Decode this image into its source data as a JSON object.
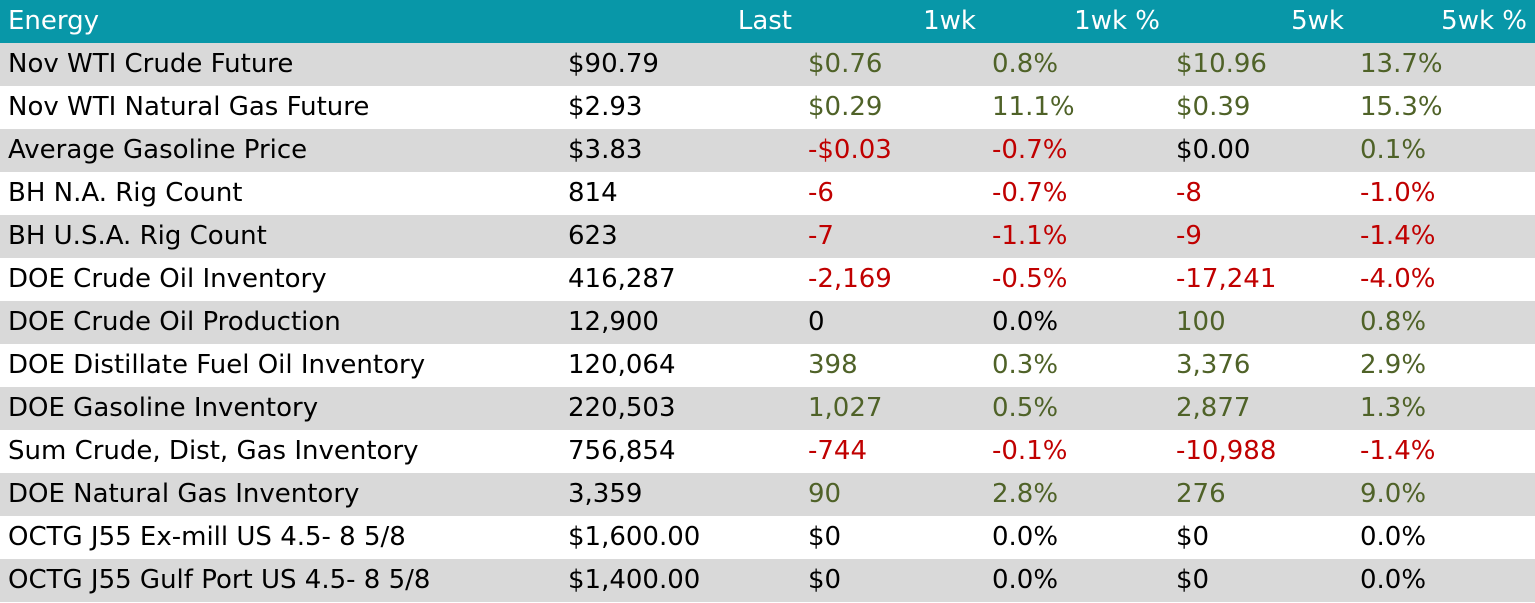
{
  "table": {
    "headers": [
      "Energy",
      "Last",
      "1wk",
      "1wk %",
      "5wk",
      "5wk %"
    ],
    "rows": [
      {
        "name": "Nov WTI Crude Future",
        "last": "$90.79",
        "wk1": "$0.76",
        "wk1_pct": "0.8%",
        "wk5": "$10.96",
        "wk5_pct": "13.7%"
      },
      {
        "name": "Nov WTI Natural Gas Future",
        "last": "$2.93",
        "wk1": "$0.29",
        "wk1_pct": "11.1%",
        "wk5": "$0.39",
        "wk5_pct": "15.3%"
      },
      {
        "name": "Average Gasoline Price",
        "last": "$3.83",
        "wk1": "-$0.03",
        "wk1_pct": "-0.7%",
        "wk5": "$0.00",
        "wk5_pct": "0.1%"
      },
      {
        "name": "BH N.A. Rig Count",
        "last": "814",
        "wk1": "-6",
        "wk1_pct": "-0.7%",
        "wk5": "-8",
        "wk5_pct": "-1.0%"
      },
      {
        "name": "BH U.S.A. Rig Count",
        "last": "623",
        "wk1": "-7",
        "wk1_pct": "-1.1%",
        "wk5": "-9",
        "wk5_pct": "-1.4%"
      },
      {
        "name": "DOE Crude Oil Inventory",
        "last": "416,287",
        "wk1": "-2,169",
        "wk1_pct": "-0.5%",
        "wk5": "-17,241",
        "wk5_pct": "-4.0%"
      },
      {
        "name": "DOE Crude Oil Production",
        "last": "12,900",
        "wk1": "0",
        "wk1_pct": "0.0%",
        "wk5": "100",
        "wk5_pct": "0.8%"
      },
      {
        "name": "DOE Distillate Fuel Oil Inventory",
        "last": "120,064",
        "wk1": "398",
        "wk1_pct": "0.3%",
        "wk5": "3,376",
        "wk5_pct": "2.9%"
      },
      {
        "name": "DOE Gasoline Inventory",
        "last": "220,503",
        "wk1": "1,027",
        "wk1_pct": "0.5%",
        "wk5": "2,877",
        "wk5_pct": "1.3%"
      },
      {
        "name": "Sum Crude, Dist, Gas Inventory",
        "last": "756,854",
        "wk1": "-744",
        "wk1_pct": "-0.1%",
        "wk5": "-10,988",
        "wk5_pct": "-1.4%"
      },
      {
        "name": "DOE Natural Gas Inventory",
        "last": "3,359",
        "wk1": "90",
        "wk1_pct": "2.8%",
        "wk5": "276",
        "wk5_pct": "9.0%"
      },
      {
        "name": "OCTG J55 Ex-mill US 4.5- 8 5/8",
        "last": "$1,600.00",
        "wk1": "$0",
        "wk1_pct": "0.0%",
        "wk5": "$0",
        "wk5_pct": "0.0%"
      },
      {
        "name": "OCTG J55 Gulf Port US 4.5- 8 5/8",
        "last": "$1,400.00",
        "wk1": "$0",
        "wk1_pct": "0.0%",
        "wk5": "$0",
        "wk5_pct": "0.0%"
      }
    ]
  },
  "colors": {
    "header_bg": "#0897a8",
    "header_text": "#ffffff",
    "stripe": "#d9d9d9",
    "positive": "#4f6228",
    "negative": "#c00000",
    "neutral": "#000000"
  }
}
